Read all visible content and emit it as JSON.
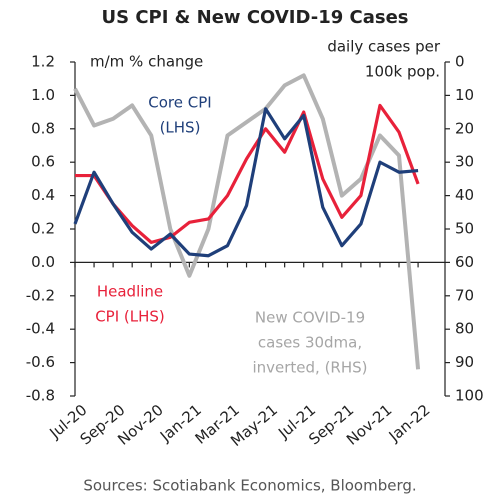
{
  "chart_data": {
    "type": "line",
    "title": "US CPI & New COVID-19 Cases",
    "y_label": "m/m % change",
    "y2_label": [
      "daily cases per",
      "100k pop."
    ],
    "annotations": [
      {
        "lines": [
          "Core CPI",
          "(LHS)"
        ],
        "color": "#1f3f7a"
      },
      {
        "lines": [
          "Headline",
          "CPI (LHS)"
        ],
        "color": "#e8213a"
      },
      {
        "lines": [
          "New COVID-19",
          "cases 30dma,",
          "inverted, (RHS)"
        ],
        "color": "#a6a6a6"
      }
    ],
    "source": "Sources: Scotiabank Economics, Bloomberg.",
    "categories": [
      "Jul-20",
      null,
      "Sep-20",
      null,
      "Nov-20",
      null,
      "Jan-21",
      null,
      "Mar-21",
      null,
      "May-21",
      null,
      "Jul-21",
      null,
      "Sep-21",
      null,
      "Nov-21",
      null,
      "Jan-22"
    ],
    "series": [
      {
        "name": "New COVID-19 cases 30dma, inverted, (RHS)",
        "color": "#b3b3b3",
        "axis": "y2",
        "values": [
          8,
          19,
          17,
          13,
          22,
          50,
          64,
          50,
          22,
          18,
          14,
          7,
          4,
          17,
          40,
          35,
          22,
          28,
          92
        ]
      },
      {
        "name": "Headline CPI (LHS)",
        "color": "#e8213a",
        "values": [
          0.52,
          0.52,
          0.35,
          0.22,
          0.12,
          0.15,
          0.24,
          0.26,
          0.4,
          0.62,
          0.8,
          0.66,
          0.9,
          0.5,
          0.27,
          0.4,
          0.94,
          0.78,
          0.47
        ]
      },
      {
        "name": "Core CPI (LHS)",
        "color": "#1f3f7a",
        "values": [
          0.23,
          0.54,
          0.35,
          0.18,
          0.08,
          0.17,
          0.05,
          0.04,
          0.1,
          0.34,
          0.92,
          0.74,
          0.88,
          0.33,
          0.1,
          0.23,
          0.6,
          0.54,
          0.55
        ]
      }
    ],
    "ylim": [
      -0.8,
      1.2
    ],
    "yticks": [
      1.2,
      {
        "value": 1,
        "label": "1.0"
      },
      0.8,
      0.6,
      0.4,
      0.2,
      {
        "value": 0,
        "label": "0.0"
      },
      -0.2,
      -0.4,
      -0.6,
      -0.8
    ],
    "y2lim": [
      0,
      100
    ],
    "y2_inverted": true,
    "y2ticks": [
      0,
      10,
      20,
      30,
      40,
      50,
      60,
      70,
      80,
      90,
      100
    ]
  }
}
